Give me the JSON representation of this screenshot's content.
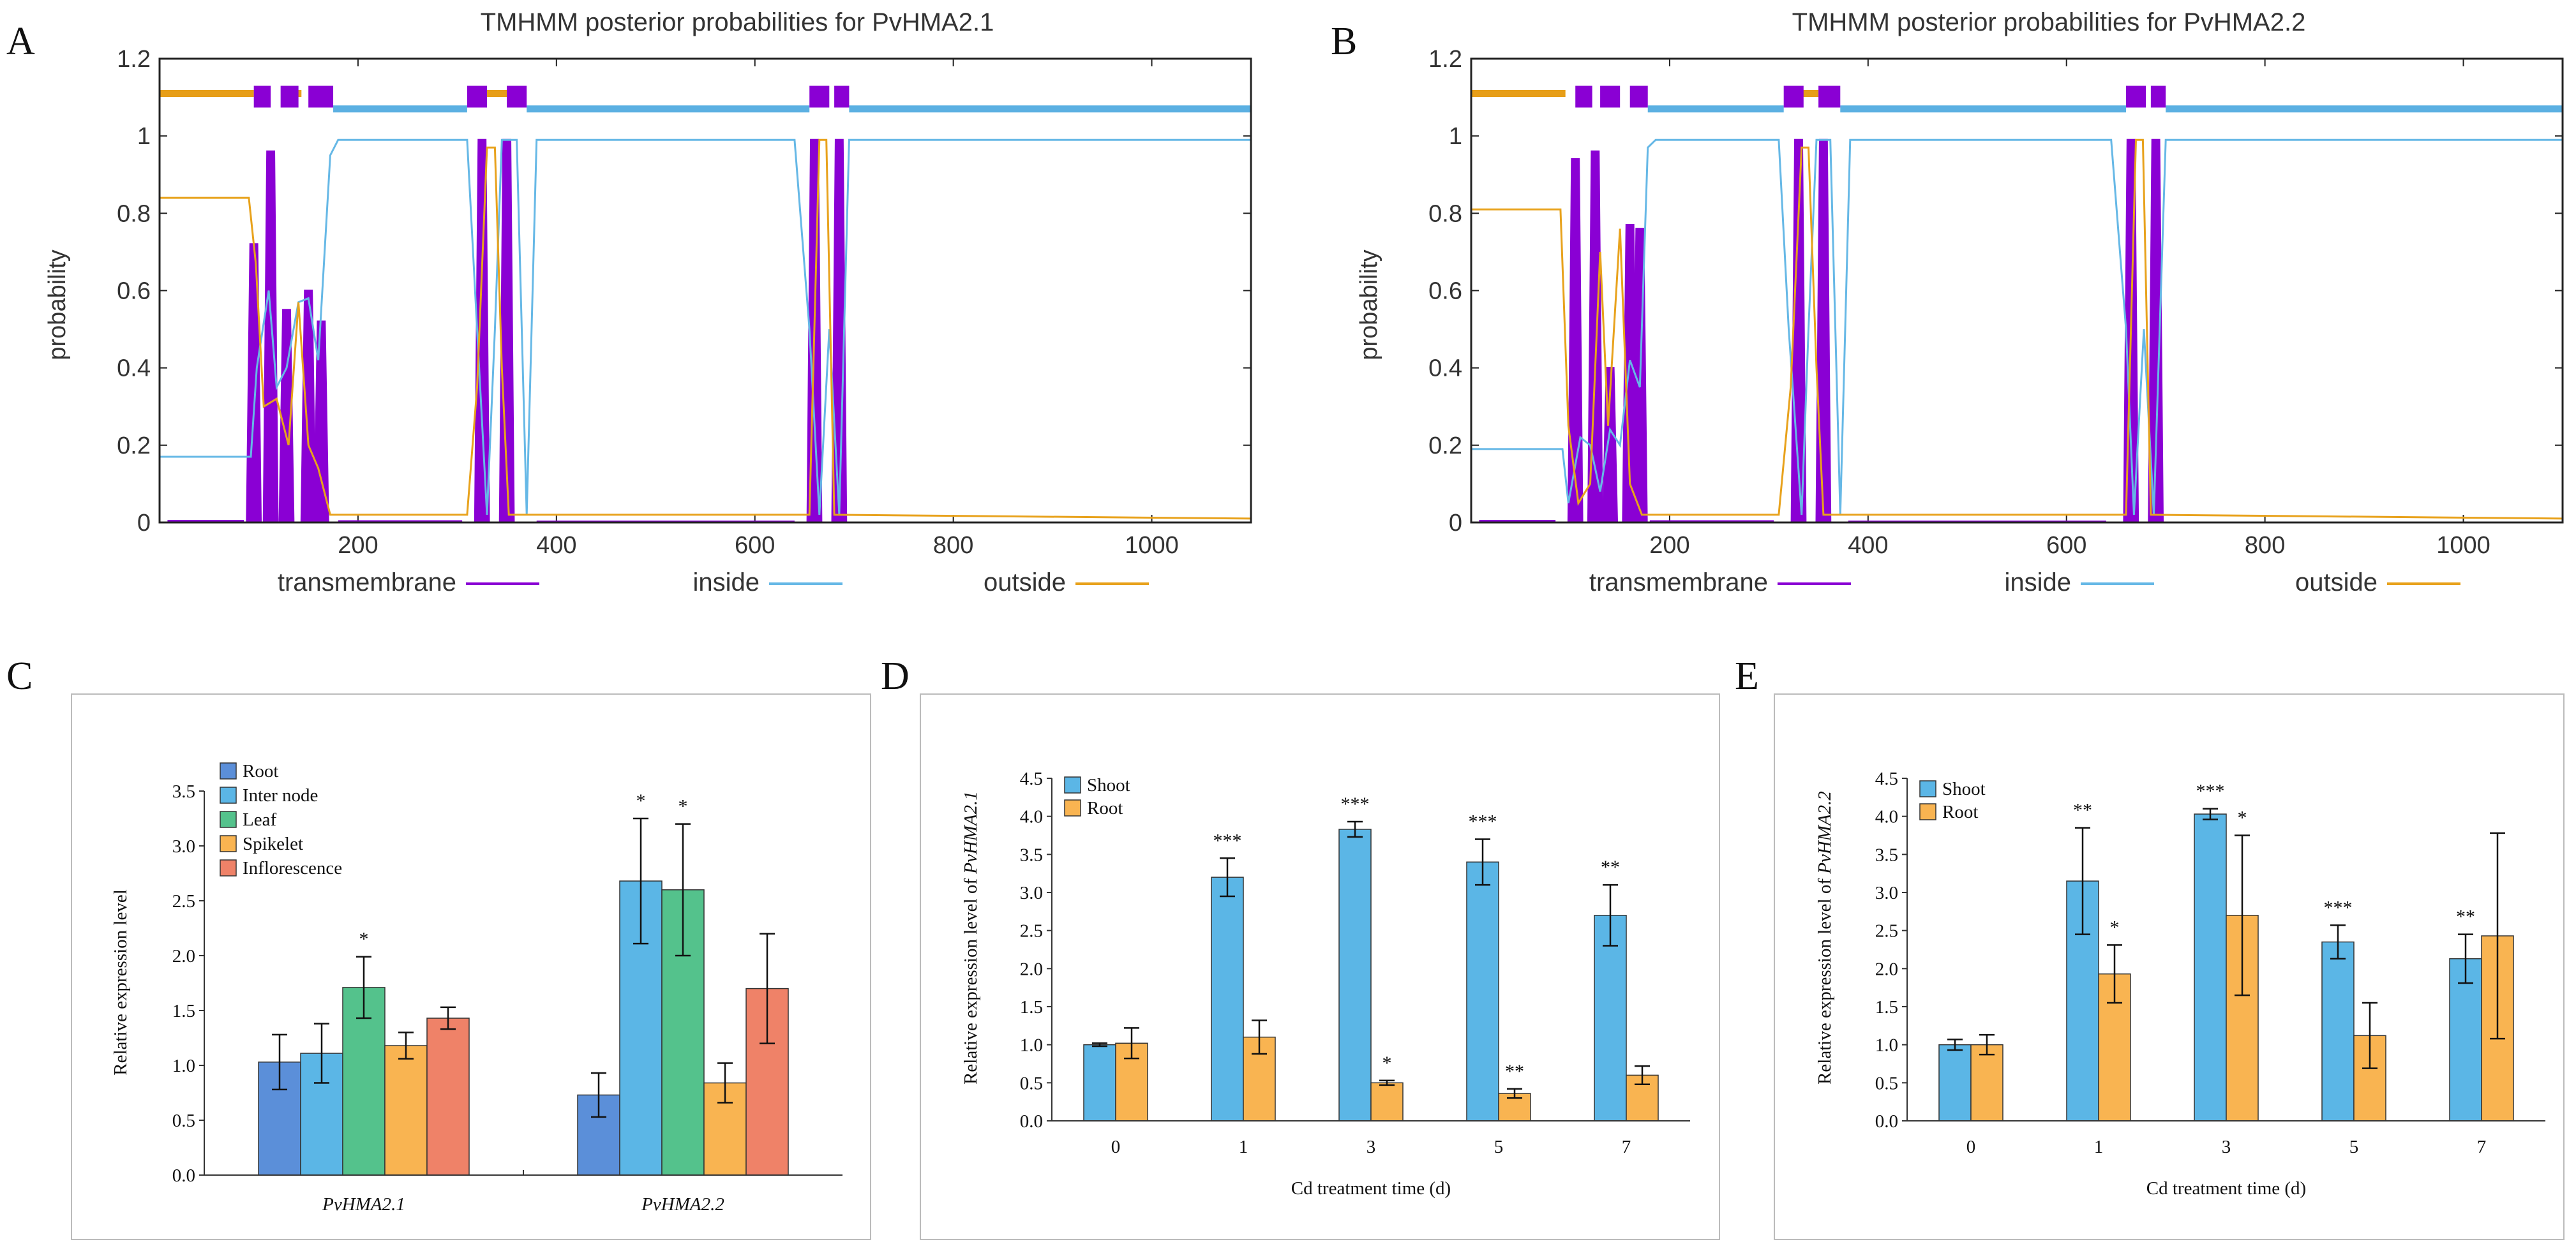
{
  "colors": {
    "transmembrane": "#8a00d4",
    "inside": "#66b8e6",
    "outside": "#e8a21c",
    "topbar_inside": "#5bb0e2",
    "topbar_outside": "#e79e18",
    "root_bar": "#5b8fd9",
    "internode_bar": "#5bb6e6",
    "leaf_bar": "#54c28c",
    "spikelet_bar": "#f9b451",
    "inflorescence_bar": "#ef8268",
    "shoot_bar": "#5bb6e6",
    "root2_bar": "#f9b451"
  },
  "chart_data": [
    {
      "panel": "A",
      "type": "line",
      "title": "TMHMM posterior probabilities for PvHMA2.1",
      "xlabel": "",
      "ylabel": "probability",
      "xlim": [
        0,
        1100
      ],
      "ylim": [
        0,
        1.2
      ],
      "xticks": [
        "200",
        "400",
        "600",
        "800",
        "1000"
      ],
      "yticks": [
        "0",
        "0.2",
        "0.4",
        "0.6",
        "0.8",
        "1",
        "1.2"
      ],
      "legend": [
        "transmembrane",
        "inside",
        "outside"
      ],
      "tm_peaks": [
        [
          95,
          0.72
        ],
        [
          112,
          0.96
        ],
        [
          128,
          0.55
        ],
        [
          150,
          0.6
        ],
        [
          163,
          0.52
        ],
        [
          325,
          0.99
        ],
        [
          350,
          0.99
        ],
        [
          660,
          0.99
        ],
        [
          685,
          0.99
        ]
      ],
      "inside_points": [
        [
          0,
          0.17
        ],
        [
          92,
          0.17
        ],
        [
          98,
          0.4
        ],
        [
          110,
          0.6
        ],
        [
          118,
          0.35
        ],
        [
          128,
          0.4
        ],
        [
          140,
          0.57
        ],
        [
          150,
          0.58
        ],
        [
          160,
          0.42
        ],
        [
          172,
          0.95
        ],
        [
          180,
          0.99
        ],
        [
          310,
          0.99
        ],
        [
          320,
          0.5
        ],
        [
          330,
          0.02
        ],
        [
          338,
          0.5
        ],
        [
          345,
          0.99
        ],
        [
          360,
          0.99
        ],
        [
          370,
          0.02
        ],
        [
          380,
          0.99
        ],
        [
          640,
          0.99
        ],
        [
          655,
          0.5
        ],
        [
          665,
          0.02
        ],
        [
          675,
          0.5
        ],
        [
          685,
          0.02
        ],
        [
          695,
          0.99
        ],
        [
          1100,
          0.99
        ]
      ],
      "outside_points": [
        [
          0,
          0.84
        ],
        [
          90,
          0.84
        ],
        [
          97,
          0.67
        ],
        [
          105,
          0.3
        ],
        [
          118,
          0.32
        ],
        [
          130,
          0.2
        ],
        [
          140,
          0.57
        ],
        [
          150,
          0.2
        ],
        [
          160,
          0.14
        ],
        [
          172,
          0.02
        ],
        [
          310,
          0.02
        ],
        [
          320,
          0.35
        ],
        [
          330,
          0.97
        ],
        [
          338,
          0.97
        ],
        [
          345,
          0.4
        ],
        [
          352,
          0.02
        ],
        [
          640,
          0.02
        ],
        [
          655,
          0.02
        ],
        [
          665,
          0.99
        ],
        [
          672,
          0.99
        ],
        [
          680,
          0.02
        ],
        [
          1100,
          0.01
        ]
      ],
      "top_outside": [
        [
          0,
          95
        ],
        [
          133,
          143
        ],
        [
          330,
          350
        ]
      ],
      "top_tm": [
        [
          95,
          112
        ],
        [
          122,
          140
        ],
        [
          150,
          175
        ],
        [
          310,
          330
        ],
        [
          350,
          370
        ],
        [
          655,
          675
        ],
        [
          680,
          695
        ]
      ],
      "top_inside": [
        [
          175,
          310
        ],
        [
          370,
          655
        ],
        [
          695,
          1100
        ]
      ]
    },
    {
      "panel": "B",
      "type": "line",
      "title": "TMHMM posterior probabilities for PvHMA2.2",
      "xlabel": "",
      "ylabel": "probability",
      "xlim": [
        0,
        1100
      ],
      "ylim": [
        0,
        1.2
      ],
      "xticks": [
        "200",
        "400",
        "600",
        "800",
        "1000"
      ],
      "yticks": [
        "0",
        "0.2",
        "0.4",
        "0.6",
        "0.8",
        "1",
        "1.2"
      ],
      "legend": [
        "transmembrane",
        "inside",
        "outside"
      ],
      "tm_peaks": [
        [
          105,
          0.94
        ],
        [
          125,
          0.96
        ],
        [
          140,
          0.4
        ],
        [
          160,
          0.77
        ],
        [
          170,
          0.76
        ],
        [
          330,
          0.99
        ],
        [
          355,
          0.99
        ],
        [
          665,
          0.99
        ],
        [
          690,
          0.99
        ]
      ],
      "inside_points": [
        [
          0,
          0.19
        ],
        [
          92,
          0.19
        ],
        [
          98,
          0.05
        ],
        [
          110,
          0.22
        ],
        [
          120,
          0.2
        ],
        [
          130,
          0.08
        ],
        [
          140,
          0.24
        ],
        [
          150,
          0.2
        ],
        [
          160,
          0.42
        ],
        [
          170,
          0.35
        ],
        [
          178,
          0.97
        ],
        [
          186,
          0.99
        ],
        [
          310,
          0.99
        ],
        [
          320,
          0.5
        ],
        [
          333,
          0.02
        ],
        [
          340,
          0.5
        ],
        [
          348,
          0.99
        ],
        [
          362,
          0.99
        ],
        [
          372,
          0.02
        ],
        [
          382,
          0.99
        ],
        [
          645,
          0.99
        ],
        [
          660,
          0.5
        ],
        [
          668,
          0.02
        ],
        [
          678,
          0.5
        ],
        [
          688,
          0.02
        ],
        [
          700,
          0.99
        ],
        [
          1100,
          0.99
        ]
      ],
      "outside_points": [
        [
          0,
          0.81
        ],
        [
          90,
          0.81
        ],
        [
          98,
          0.25
        ],
        [
          108,
          0.05
        ],
        [
          120,
          0.1
        ],
        [
          130,
          0.7
        ],
        [
          138,
          0.25
        ],
        [
          150,
          0.76
        ],
        [
          160,
          0.1
        ],
        [
          172,
          0.02
        ],
        [
          310,
          0.02
        ],
        [
          322,
          0.35
        ],
        [
          333,
          0.97
        ],
        [
          340,
          0.97
        ],
        [
          348,
          0.4
        ],
        [
          355,
          0.02
        ],
        [
          645,
          0.02
        ],
        [
          660,
          0.02
        ],
        [
          670,
          0.99
        ],
        [
          677,
          0.99
        ],
        [
          685,
          0.02
        ],
        [
          1100,
          0.01
        ]
      ],
      "top_outside": [
        [
          0,
          95
        ],
        [
          330,
          350
        ]
      ],
      "top_tm": [
        [
          105,
          122
        ],
        [
          130,
          150
        ],
        [
          160,
          178
        ],
        [
          315,
          335
        ],
        [
          350,
          372
        ],
        [
          660,
          680
        ],
        [
          685,
          700
        ]
      ],
      "top_inside": [
        [
          178,
          315
        ],
        [
          372,
          660
        ],
        [
          700,
          1100
        ]
      ]
    },
    {
      "panel": "C",
      "type": "bar",
      "title": "",
      "xlabel": "",
      "ylabel": "Relative expression level",
      "ylim": [
        0,
        3.5
      ],
      "yticks": [
        "0.0",
        "0.5",
        "1.0",
        "1.5",
        "2.0",
        "2.5",
        "3.0",
        "3.5"
      ],
      "categories": [
        "PvHMA2.1",
        "PvHMA2.2"
      ],
      "series": [
        {
          "name": "Root",
          "values": [
            1.03,
            0.73
          ],
          "errors": [
            0.25,
            0.2
          ],
          "sig": [
            "",
            ""
          ]
        },
        {
          "name": "Inter node",
          "values": [
            1.11,
            2.68
          ],
          "errors": [
            0.27,
            0.57
          ],
          "sig": [
            "",
            "*"
          ]
        },
        {
          "name": "Leaf",
          "values": [
            1.71,
            2.6
          ],
          "errors": [
            0.28,
            0.6
          ],
          "sig": [
            "*",
            "*"
          ]
        },
        {
          "name": "Spikelet",
          "values": [
            1.18,
            0.84
          ],
          "errors": [
            0.12,
            0.18
          ],
          "sig": [
            "",
            ""
          ]
        },
        {
          "name": "Inflorescence",
          "values": [
            1.43,
            1.7
          ],
          "errors": [
            0.1,
            0.5
          ],
          "sig": [
            "",
            ""
          ]
        }
      ]
    },
    {
      "panel": "D",
      "type": "bar",
      "title": "",
      "xlabel": "Cd treatment time (d)",
      "ylabel_prefix": "Relative expression level of ",
      "ylabel_gene": "PvHMA2.1",
      "ylim": [
        0,
        4.5
      ],
      "yticks": [
        "0.0",
        "0.5",
        "1.0",
        "1.5",
        "2.0",
        "2.5",
        "3.0",
        "3.5",
        "4.0",
        "4.5"
      ],
      "categories": [
        "0",
        "1",
        "3",
        "5",
        "7"
      ],
      "series": [
        {
          "name": "Shoot",
          "values": [
            1.0,
            3.2,
            3.83,
            3.4,
            2.7
          ],
          "errors": [
            0.02,
            0.25,
            0.1,
            0.3,
            0.4
          ],
          "sig": [
            "",
            "***",
            "***",
            "***",
            "**"
          ]
        },
        {
          "name": "Root",
          "values": [
            1.02,
            1.1,
            0.5,
            0.36,
            0.6
          ],
          "errors": [
            0.2,
            0.22,
            0.03,
            0.06,
            0.12
          ],
          "sig": [
            "",
            "",
            "*",
            "**",
            ""
          ]
        }
      ]
    },
    {
      "panel": "E",
      "type": "bar",
      "title": "",
      "xlabel": "Cd treatment time (d)",
      "ylabel_prefix": "Relative expression level of ",
      "ylabel_gene": "PvHMA2.2",
      "ylim": [
        0,
        4.5
      ],
      "yticks": [
        "0.0",
        "0.5",
        "1.0",
        "1.5",
        "2.0",
        "2.5",
        "3.0",
        "3.5",
        "4.0",
        "4.5"
      ],
      "categories": [
        "0",
        "1",
        "3",
        "5",
        "7"
      ],
      "series": [
        {
          "name": "Shoot",
          "values": [
            1.0,
            3.15,
            4.03,
            2.35,
            2.13
          ],
          "errors": [
            0.07,
            0.7,
            0.07,
            0.22,
            0.32
          ],
          "sig": [
            "",
            "**",
            "***",
            "***",
            "**"
          ]
        },
        {
          "name": "Root",
          "values": [
            1.0,
            1.93,
            2.7,
            1.12,
            2.43
          ],
          "errors": [
            0.13,
            0.38,
            1.05,
            0.43,
            1.35
          ],
          "sig": [
            "",
            "*",
            "*",
            "",
            ""
          ]
        }
      ]
    }
  ]
}
